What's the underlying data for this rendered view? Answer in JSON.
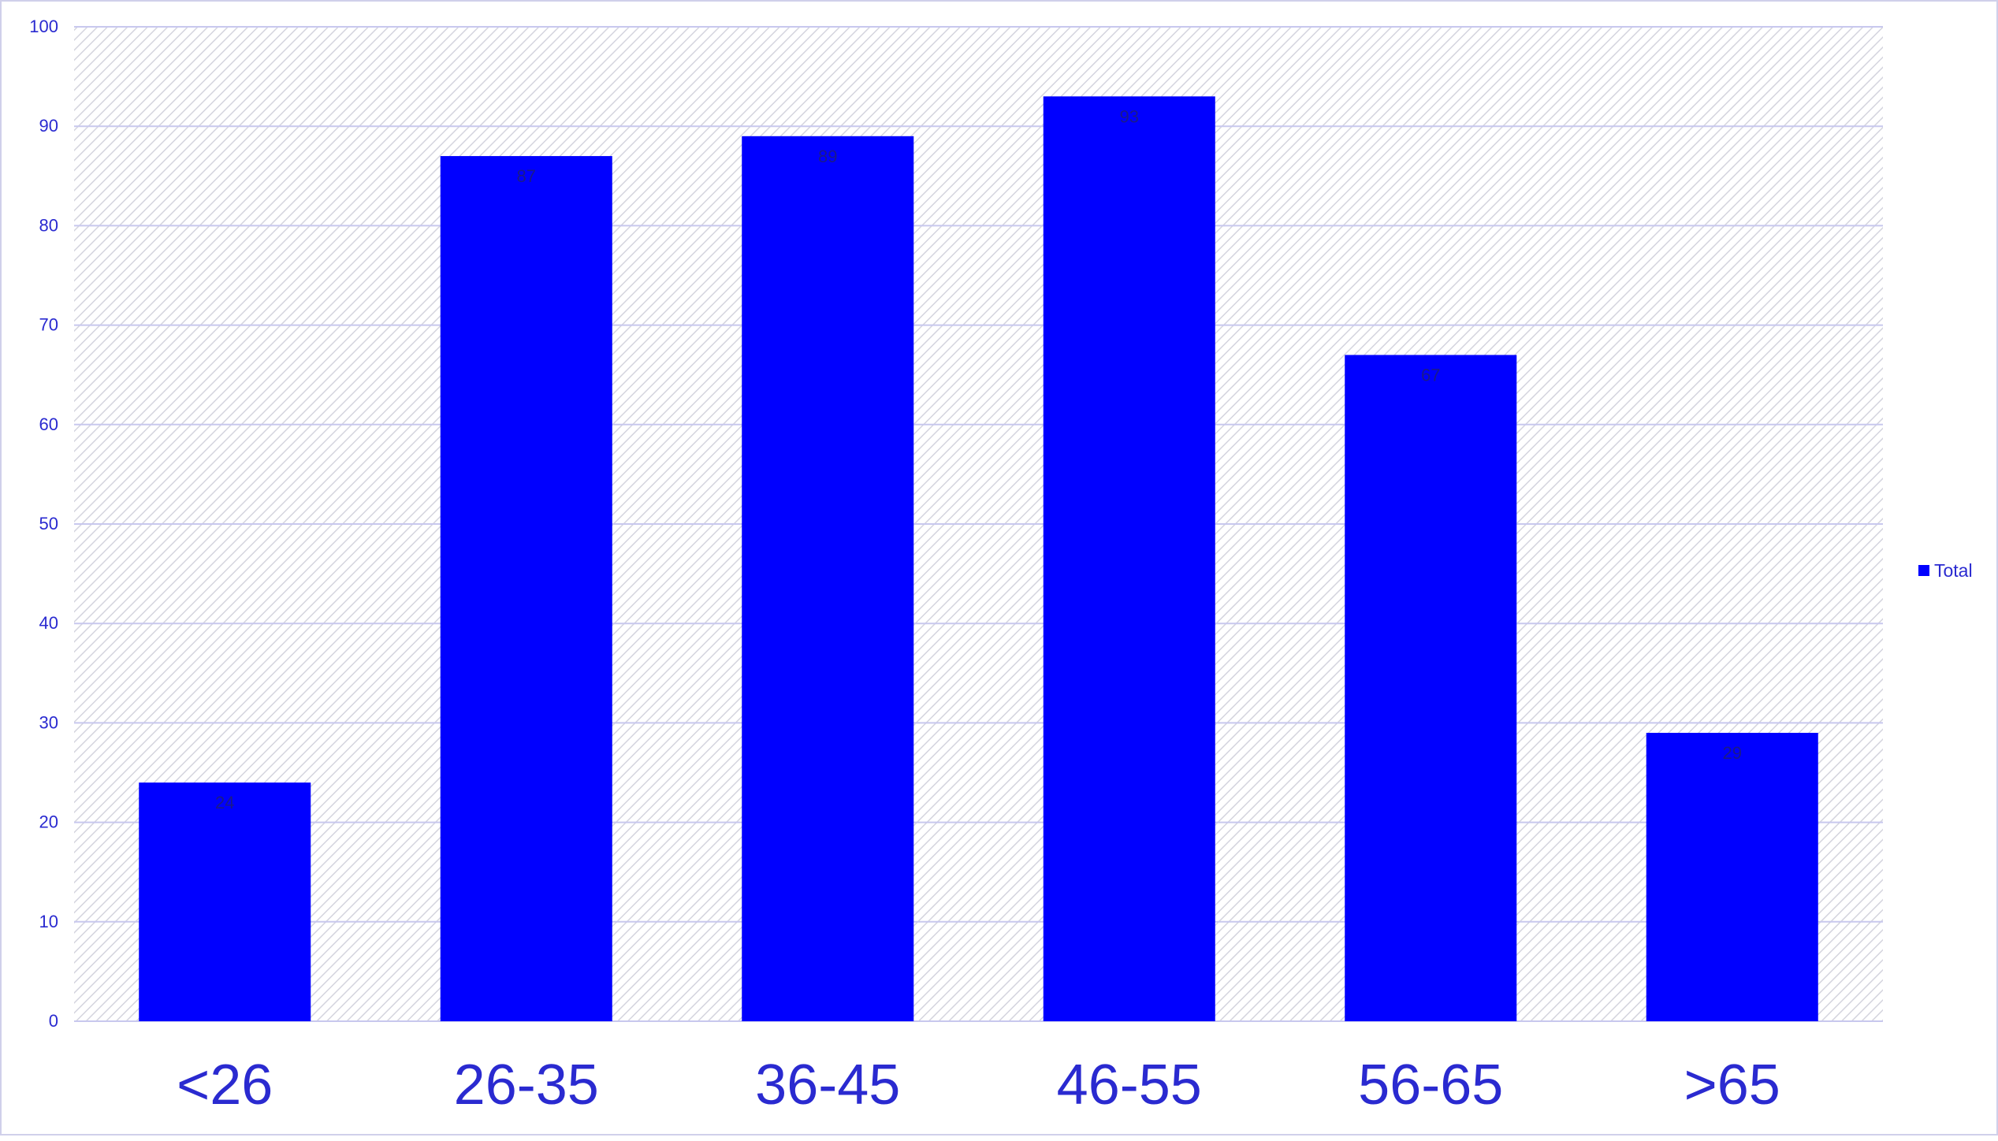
{
  "chart_data": {
    "type": "bar",
    "title": "",
    "xlabel": "",
    "ylabel": "",
    "categories": [
      "<26",
      "26-35",
      "36-45",
      "46-55",
      "56-65",
      ">65"
    ],
    "series": [
      {
        "name": "Total",
        "values": [
          24,
          87,
          89,
          93,
          67,
          29
        ]
      }
    ],
    "data_labels": [
      "24",
      "87",
      "89",
      "93",
      "67",
      "29"
    ],
    "ylim": [
      0,
      100
    ],
    "yticks": [
      0,
      10,
      20,
      30,
      40,
      50,
      60,
      70,
      80,
      90,
      100
    ],
    "ytick_labels": [
      "0",
      "10",
      "20",
      "30",
      "40",
      "50",
      "60",
      "70",
      "80",
      "90",
      "100"
    ],
    "grid": true,
    "legend_position": "right",
    "plot_background": "diagonal-hatch",
    "colors": {
      "bar": "#0000ff",
      "axis_text": "#2a2ad0",
      "category_text": "#2a2ad0",
      "gridline": "#c8c8ee",
      "hatch": "#d4d4de",
      "data_label": "#1a1a8a"
    }
  }
}
